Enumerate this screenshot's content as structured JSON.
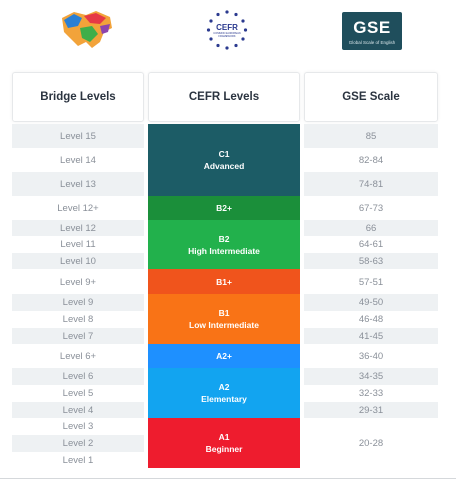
{
  "logos": {
    "cefr_title": "CEFR",
    "cefr_subtitle": "COMMON EUROPEAN FRAMEWORK",
    "gse_big": "GSE",
    "gse_small": "Global Scale of English"
  },
  "headers": {
    "bridge": "Bridge Levels",
    "cefr": "CEFR Levels",
    "gse": "GSE Scale"
  },
  "bridge_levels": [
    "Level 15",
    "Level 14",
    "Level 13",
    "Level 12+",
    "Level 12",
    "Level 11",
    "Level 10",
    "Level 9+",
    "Level 9",
    "Level 8",
    "Level 7",
    "Level 6+",
    "Level 6",
    "Level 5",
    "Level 4",
    "Level 3",
    "Level 2",
    "Level 1"
  ],
  "cefr_levels": [
    {
      "code": "C1",
      "name": "Advanced",
      "color": "#1c5c66"
    },
    {
      "code": "B2+",
      "name": "",
      "color": "#1b8f3a"
    },
    {
      "code": "B2",
      "name": "High Intermediate",
      "color": "#22b14c"
    },
    {
      "code": "B1+",
      "name": "",
      "color": "#f0541c"
    },
    {
      "code": "B1",
      "name": "Low Intermediate",
      "color": "#f97316"
    },
    {
      "code": "A2+",
      "name": "",
      "color": "#1e90ff"
    },
    {
      "code": "A2",
      "name": "Elementary",
      "color": "#12a4f0"
    },
    {
      "code": "A1",
      "name": "Beginner",
      "color": "#ee1c2e"
    }
  ],
  "gse_scale": [
    "85",
    "82-84",
    "74-81",
    "67-73",
    "66",
    "64-61",
    "58-63",
    "57-51",
    "49-50",
    "46-48",
    "41-45",
    "36-40",
    "34-35",
    "32-33",
    "29-31",
    "20-28"
  ]
}
